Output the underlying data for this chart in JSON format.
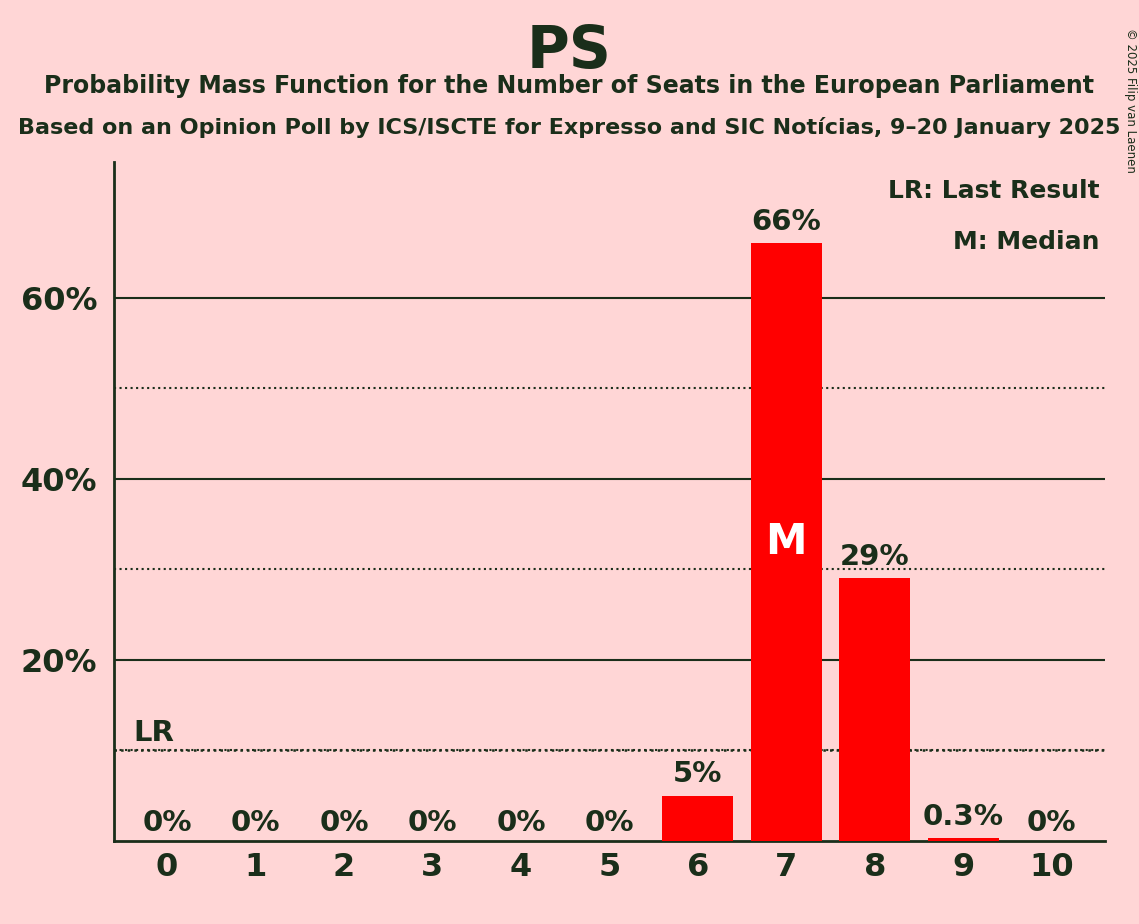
{
  "title": "PS",
  "subtitle1": "Probability Mass Function for the Number of Seats in the European Parliament",
  "subtitle2": "Based on an Opinion Poll by ICS/ISCTE for Expresso and SIC Notícias, 9–20 January 2025",
  "copyright": "© 2025 Filip van Laenen",
  "seats": [
    0,
    1,
    2,
    3,
    4,
    5,
    6,
    7,
    8,
    9,
    10
  ],
  "probabilities": [
    0.0,
    0.0,
    0.0,
    0.0,
    0.0,
    0.0,
    0.05,
    0.66,
    0.29,
    0.003,
    0.0
  ],
  "bar_labels": [
    "0%",
    "0%",
    "0%",
    "0%",
    "0%",
    "0%",
    "5%",
    "66%",
    "29%",
    "0.3%",
    "0%"
  ],
  "bar_color": "#FF0000",
  "background_color": "#FFD6D6",
  "text_color": "#1a2e1a",
  "median_seat": 7,
  "lr_value": 0.1,
  "legend_lr": "LR: Last Result",
  "legend_m": "M: Median",
  "yticks": [
    0.2,
    0.4,
    0.6
  ],
  "ytick_labels": [
    "20%",
    "40%",
    "60%"
  ],
  "dotted_yticks": [
    0.1,
    0.3,
    0.5
  ],
  "ylim": [
    0,
    0.75
  ]
}
